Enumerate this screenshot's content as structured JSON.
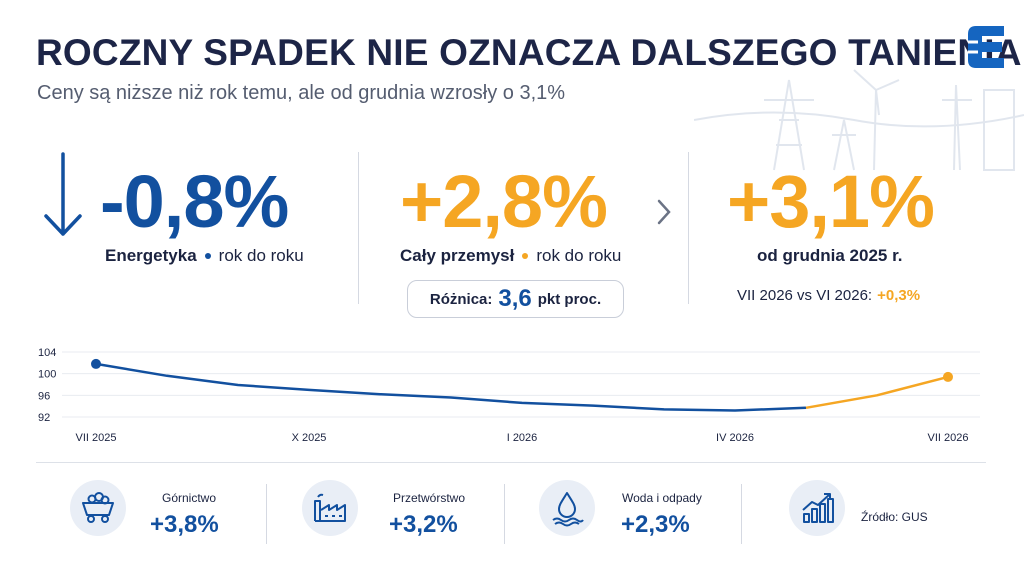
{
  "title": "ROCZNY SPADEK NIE OZNACZA DALSZEGO TANIENIA",
  "subtitle": "Ceny są niższe niż rok temu, ale od grudnia wzrosły o 3,1%",
  "colors": {
    "blue": "#12509f",
    "orange": "#f5a623",
    "navy": "#1d2547"
  },
  "kpis": {
    "energy": {
      "value": "-0,8%",
      "name": "Energetyka",
      "period": "rok do roku",
      "icon": "arrow-down-icon"
    },
    "industry": {
      "value": "+2,8%",
      "name": "Cały przemysł",
      "period": "rok do roku"
    },
    "difference": {
      "label": "Różnica:",
      "value": "3,6",
      "unit": "pkt proc."
    },
    "since_december": {
      "value": "+3,1%",
      "label": "od grudnia 2025 r.",
      "comparison_label": "VII 2026 vs VI 2026:",
      "comparison_value": "+0,3%"
    }
  },
  "chart_data": {
    "type": "line",
    "x": [
      "VII 2025",
      "VIII 2025",
      "IX 2025",
      "X 2025",
      "XI 2025",
      "XII 2025",
      "I 2026",
      "II 2026",
      "III 2026",
      "IV 2026",
      "V 2026",
      "VI 2026",
      "VII 2026"
    ],
    "x_tick_labels": [
      "VII 2025",
      "X 2025",
      "I 2026",
      "IV 2026",
      "VII 2026"
    ],
    "y_tick_labels": [
      "104",
      "100",
      "96",
      "92"
    ],
    "ylim": [
      92,
      104
    ],
    "series": [
      {
        "color": "#12509f",
        "values": [
          101.8,
          99.6,
          97.9,
          97.0,
          96.2,
          95.6,
          94.6,
          94.1,
          93.4,
          93.2,
          93.7,
          96.0,
          99.4
        ],
        "highlight_from_index": 10,
        "highlight_color": "#f5a623"
      }
    ],
    "grid": true
  },
  "sectors": [
    {
      "name": "Górnictwo",
      "value": "+3,8%",
      "icon": "mining-cart-icon"
    },
    {
      "name": "Przetwórstwo",
      "value": "+3,2%",
      "icon": "factory-icon"
    },
    {
      "name": "Woda i odpady",
      "value": "+2,3%",
      "icon": "water-drop-icon"
    }
  ],
  "source": {
    "text": "Źródło: GUS",
    "icon": "bar-chart-growth-icon"
  }
}
